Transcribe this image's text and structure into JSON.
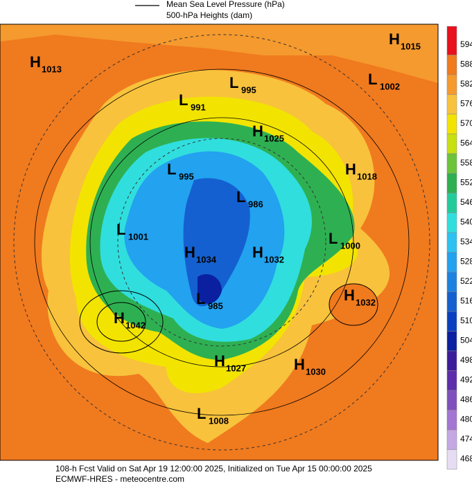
{
  "legend": {
    "line_label": "Mean Sea Level Pressure (hPa)",
    "fill_label": "500-hPa Heights (dam)"
  },
  "centers": [
    {
      "kind": "H",
      "value": "1013"
    },
    {
      "kind": "L",
      "value": "995"
    },
    {
      "kind": "H",
      "value": "1015"
    },
    {
      "kind": "L",
      "value": "1002"
    },
    {
      "kind": "L",
      "value": "991"
    },
    {
      "kind": "H",
      "value": "1025"
    },
    {
      "kind": "H",
      "value": "1018"
    },
    {
      "kind": "L",
      "value": "995"
    },
    {
      "kind": "L",
      "value": "986"
    },
    {
      "kind": "L",
      "value": "1001"
    },
    {
      "kind": "L",
      "value": "1000"
    },
    {
      "kind": "H",
      "value": "1034"
    },
    {
      "kind": "H",
      "value": "1032"
    },
    {
      "kind": "H",
      "value": "1032"
    },
    {
      "kind": "L",
      "value": "985"
    },
    {
      "kind": "H",
      "value": "1042"
    },
    {
      "kind": "H",
      "value": "1027"
    },
    {
      "kind": "H",
      "value": "1030"
    },
    {
      "kind": "L",
      "value": "1008"
    }
  ],
  "colorbar": {
    "ticks": [
      594,
      588,
      582,
      576,
      570,
      564,
      558,
      552,
      546,
      540,
      534,
      528,
      522,
      516,
      510,
      504,
      498,
      492,
      486,
      480,
      474,
      468
    ],
    "colors": [
      "#e8101c",
      "#f07a1e",
      "#f59a2e",
      "#f8c23c",
      "#f2e400",
      "#c6e012",
      "#6cc43a",
      "#2eb052",
      "#22cc9a",
      "#30dede",
      "#2ec2f2",
      "#22a2ef",
      "#1c82e0",
      "#1460d0",
      "#0a40c0",
      "#0a20a0",
      "#3c1c9a",
      "#5c2eaa",
      "#7e50be",
      "#a276d2",
      "#c4a8e4",
      "#e6dcf4"
    ]
  },
  "footer": {
    "line1": "108-h Fcst Valid on Sat Apr 19 12:00:00 2025, Initialized on Tue Apr 15 00:00:00 2025",
    "line2": "ECMWF-HRES - meteocentre.com"
  }
}
